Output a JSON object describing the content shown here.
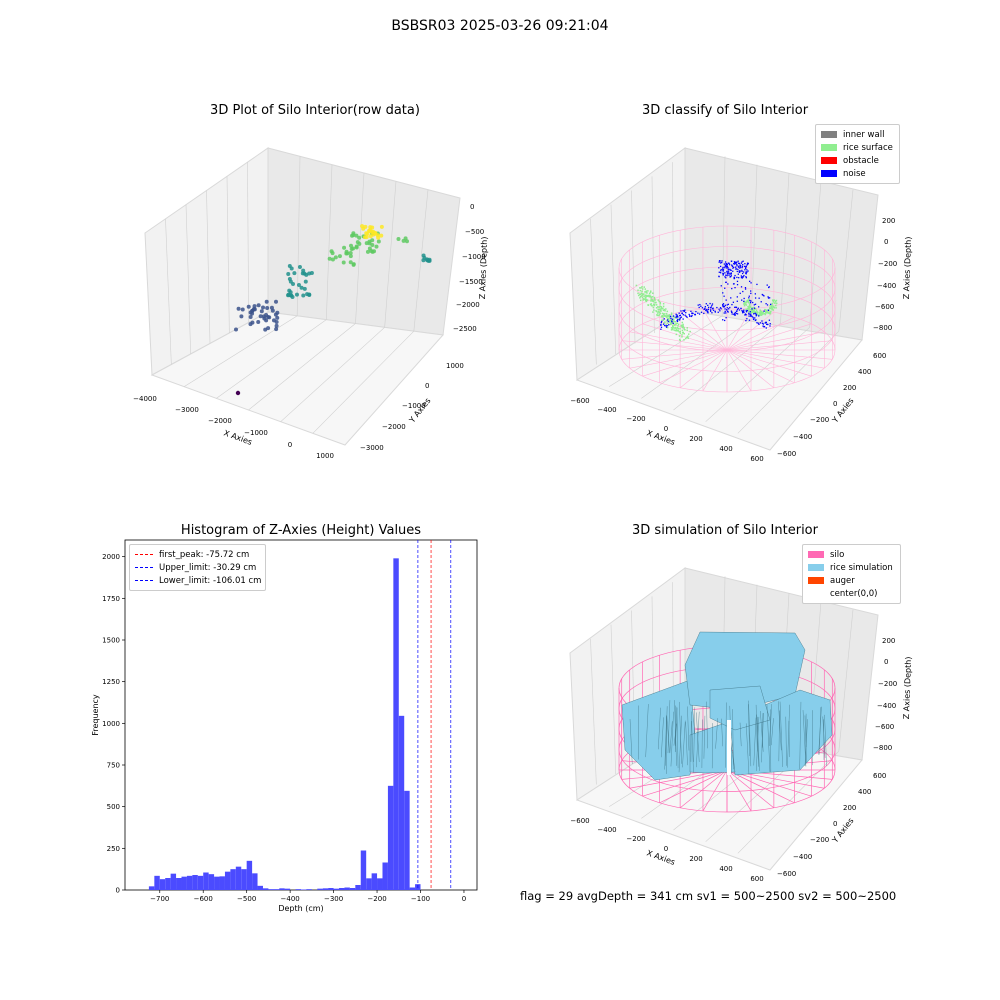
{
  "figure": {
    "suptitle": "BSBSR03 2025-03-26 09:21:04",
    "status_line": "flag = 29  avgDepth = 341 cm  sv1 = 500~2500  sv2 = 500~2500"
  },
  "chart_data": [
    {
      "type": "scatter",
      "title": "3D Plot of Silo Interior(row data)",
      "xlabel": "X Axies",
      "ylabel": "Y Axies",
      "zlabel": "Z Axies (Depth)",
      "x_ticks": [
        "−4000",
        "−3000",
        "−2000",
        "−1000",
        "0",
        "1000"
      ],
      "y_ticks": [
        "1000",
        "0",
        "−1000",
        "−2000",
        "−3000"
      ],
      "z_ticks": [
        "0",
        "−500",
        "−1000",
        "−1500",
        "−2000",
        "−2500"
      ],
      "colormap": [
        "#440154",
        "#3b528b",
        "#21918c",
        "#5ec962",
        "#fde725"
      ]
    },
    {
      "type": "scatter",
      "title": "3D classify of Silo Interior",
      "xlabel": "X Axies",
      "ylabel": "Y Axies",
      "zlabel": "Z Axies (Depth)",
      "x_ticks": [
        "−600",
        "−400",
        "−200",
        "0",
        "200",
        "400",
        "600"
      ],
      "y_ticks": [
        "600",
        "400",
        "200",
        "0",
        "−200",
        "−400",
        "−600"
      ],
      "z_ticks": [
        "200",
        "0",
        "−200",
        "−400",
        "−600",
        "−800"
      ],
      "legend": [
        {
          "label": "inner wall",
          "color": "#808080"
        },
        {
          "label": "rice surface",
          "color": "#90ee90"
        },
        {
          "label": "obstacle",
          "color": "#ff0000"
        },
        {
          "label": "noise",
          "color": "#0000ff"
        }
      ]
    },
    {
      "type": "bar",
      "title": "Histogram of Z-Axies (Height) Values",
      "xlabel": "Depth (cm)",
      "ylabel": "Frequency",
      "xlim": [
        -780,
        30
      ],
      "ylim": [
        0,
        2100
      ],
      "x_ticks": [
        -700,
        -600,
        -500,
        -400,
        -300,
        -200,
        -100,
        0
      ],
      "y_ticks": [
        0,
        250,
        500,
        750,
        1000,
        1250,
        1500,
        1750,
        2000
      ],
      "bin_width": 12.5,
      "bins": [
        {
          "x": -725,
          "y": 22
        },
        {
          "x": -712.5,
          "y": 85
        },
        {
          "x": -700,
          "y": 65
        },
        {
          "x": -687.5,
          "y": 72
        },
        {
          "x": -675,
          "y": 98
        },
        {
          "x": -662.5,
          "y": 72
        },
        {
          "x": -650,
          "y": 80
        },
        {
          "x": -637.5,
          "y": 85
        },
        {
          "x": -625,
          "y": 90
        },
        {
          "x": -612.5,
          "y": 85
        },
        {
          "x": -600,
          "y": 105
        },
        {
          "x": -587.5,
          "y": 95
        },
        {
          "x": -575,
          "y": 80
        },
        {
          "x": -562.5,
          "y": 82
        },
        {
          "x": -550,
          "y": 110
        },
        {
          "x": -537.5,
          "y": 125
        },
        {
          "x": -525,
          "y": 140
        },
        {
          "x": -512.5,
          "y": 125
        },
        {
          "x": -500,
          "y": 175
        },
        {
          "x": -487.5,
          "y": 100
        },
        {
          "x": -475,
          "y": 25
        },
        {
          "x": -462.5,
          "y": 10
        },
        {
          "x": -450,
          "y": 5
        },
        {
          "x": -437.5,
          "y": 5
        },
        {
          "x": -425,
          "y": 10
        },
        {
          "x": -412.5,
          "y": 8
        },
        {
          "x": -387.5,
          "y": 5
        },
        {
          "x": -375,
          "y": 3
        },
        {
          "x": -362.5,
          "y": 5
        },
        {
          "x": -337.5,
          "y": 8
        },
        {
          "x": -325,
          "y": 10
        },
        {
          "x": -312.5,
          "y": 12
        },
        {
          "x": -300,
          "y": 8
        },
        {
          "x": -287.5,
          "y": 12
        },
        {
          "x": -275,
          "y": 15
        },
        {
          "x": -262.5,
          "y": 12
        },
        {
          "x": -250,
          "y": 30
        },
        {
          "x": -237.5,
          "y": 237
        },
        {
          "x": -225,
          "y": 70
        },
        {
          "x": -212.5,
          "y": 100
        },
        {
          "x": -200,
          "y": 70
        },
        {
          "x": -187.5,
          "y": 165
        },
        {
          "x": -175,
          "y": 625
        },
        {
          "x": -162.5,
          "y": 1990
        },
        {
          "x": -150,
          "y": 1045
        },
        {
          "x": -137.5,
          "y": 595
        },
        {
          "x": -125,
          "y": 15
        },
        {
          "x": -112.5,
          "y": 35
        }
      ],
      "reference_lines": [
        {
          "label": "first_peak: -75.72 cm",
          "value": -75.72,
          "color": "#ff0000"
        },
        {
          "label": "Upper_limit: -30.29 cm",
          "value": -30.29,
          "color": "#0000ff"
        },
        {
          "label": "Lower_limit: -106.01 cm",
          "value": -106.01,
          "color": "#0000ff"
        }
      ],
      "bar_color": "#4b4bff"
    },
    {
      "type": "area",
      "title": "3D simulation of Silo Interior",
      "xlabel": "X Axies",
      "ylabel": "Y Axies",
      "zlabel": "Z Axies (Depth)",
      "x_ticks": [
        "−600",
        "−400",
        "−200",
        "0",
        "200",
        "400",
        "600"
      ],
      "y_ticks": [
        "600",
        "400",
        "200",
        "0",
        "−200",
        "−400",
        "−600"
      ],
      "z_ticks": [
        "200",
        "0",
        "−200",
        "−400",
        "−600",
        "−800"
      ],
      "legend": [
        {
          "label": "silo",
          "color": "#ff69b4"
        },
        {
          "label": "rice simulation",
          "color": "#87ceeb"
        },
        {
          "label": "auger",
          "color": "#ff4500"
        },
        {
          "label": "center(0,0)",
          "color": ""
        }
      ]
    }
  ]
}
